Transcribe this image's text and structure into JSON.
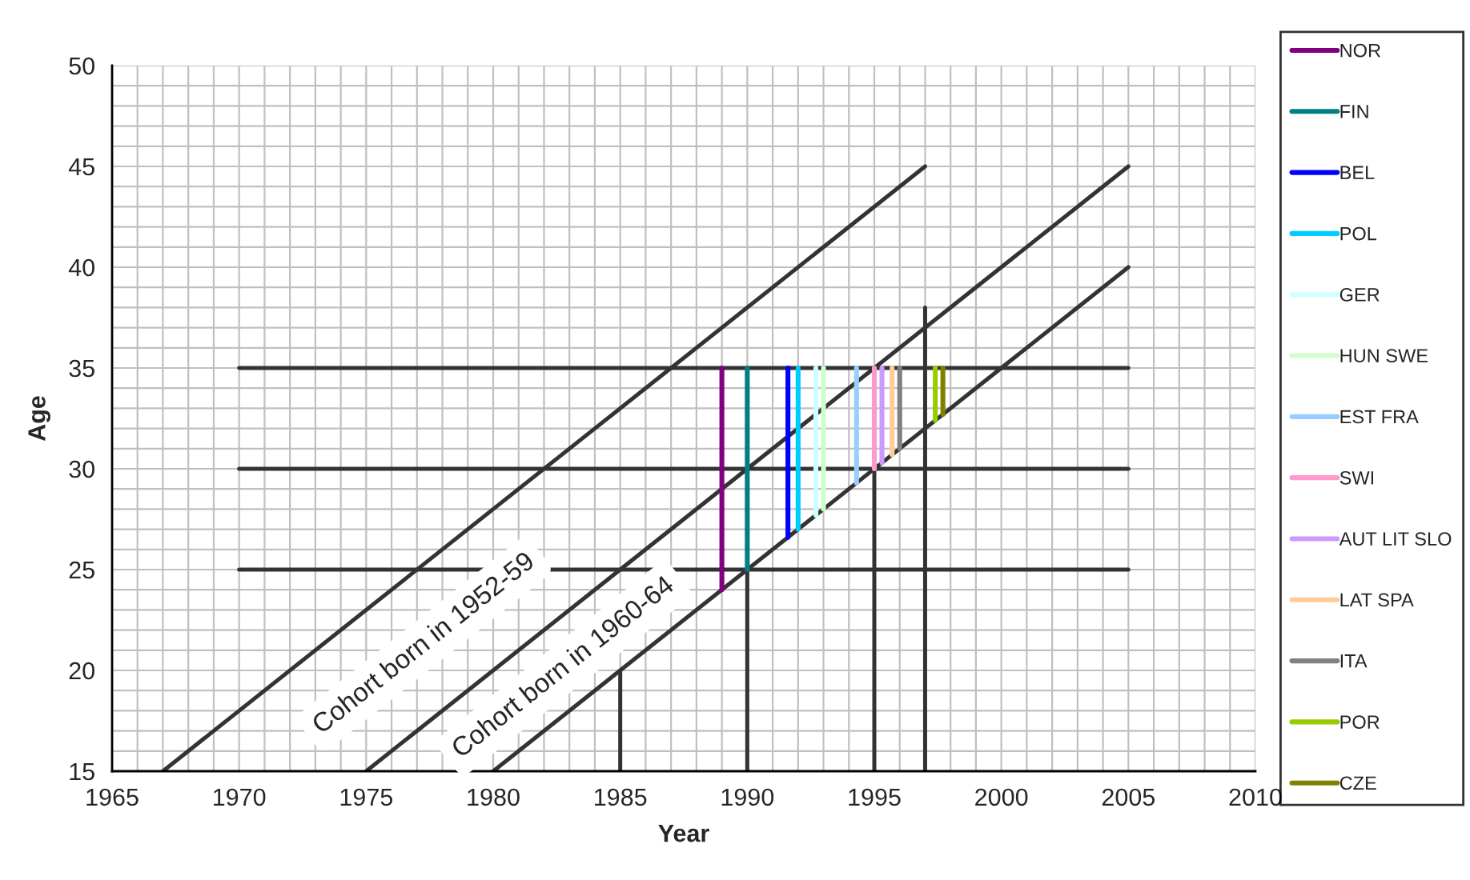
{
  "chart_data": {
    "type": "line",
    "xlabel": "Year",
    "ylabel": "Age",
    "xlim": [
      1965,
      2010
    ],
    "xticks": [
      1965,
      1970,
      1975,
      1980,
      1985,
      1990,
      1995,
      2000,
      2005,
      2010
    ],
    "ylim": [
      15,
      50
    ],
    "yticks": [
      15,
      20,
      25,
      30,
      35,
      40,
      45,
      50
    ],
    "grid": true,
    "legend": "right",
    "marker": "none",
    "line_style": "solid",
    "series": [
      {
        "color": "#333333",
        "x": [
          1967,
          1997
        ],
        "values": [
          15,
          45
        ]
      },
      {
        "color": "#333333",
        "x": [
          1975,
          2005
        ],
        "values": [
          15,
          45
        ]
      },
      {
        "color": "#333333",
        "x": [
          1980,
          2005
        ],
        "values": [
          15,
          40
        ]
      },
      {
        "color": "#333333",
        "x": [
          1970,
          2005
        ],
        "values": [
          35,
          35
        ]
      },
      {
        "color": "#333333",
        "x": [
          1970,
          2005
        ],
        "values": [
          30,
          30
        ]
      },
      {
        "color": "#333333",
        "x": [
          1970,
          2005
        ],
        "values": [
          25,
          25
        ]
      },
      {
        "color": "#333333",
        "x": [
          1985,
          1985
        ],
        "values": [
          15,
          20
        ]
      },
      {
        "color": "#333333",
        "x": [
          1990,
          1990
        ],
        "values": [
          15,
          25
        ]
      },
      {
        "color": "#333333",
        "x": [
          1995,
          1995
        ],
        "values": [
          15,
          30
        ]
      },
      {
        "color": "#333333",
        "x": [
          1997,
          1997
        ],
        "values": [
          15,
          38
        ]
      },
      {
        "name": "NOR",
        "color": "#800080",
        "x": [
          1989,
          1989
        ],
        "values": [
          24,
          35
        ]
      },
      {
        "name": "FIN",
        "color": "#008080",
        "x": [
          1990,
          1990
        ],
        "values": [
          25,
          35
        ]
      },
      {
        "name": "BEL",
        "color": "#0000ff",
        "x": [
          1991.6,
          1991.6
        ],
        "values": [
          26.6,
          35
        ]
      },
      {
        "name": "POL",
        "color": "#00ccff",
        "x": [
          1992,
          1992
        ],
        "values": [
          27,
          35
        ]
      },
      {
        "name": "GER",
        "color": "#ccffff",
        "x": [
          1992.7,
          1992.7
        ],
        "values": [
          27.7,
          35
        ]
      },
      {
        "name": "HUN SWE",
        "color": "#ccffcc",
        "x": [
          1993,
          1993
        ],
        "values": [
          28,
          35
        ]
      },
      {
        "name": "EST FRA",
        "color": "#99ccff",
        "x": [
          1994.3,
          1994.3
        ],
        "values": [
          29.3,
          35
        ]
      },
      {
        "name": "SWI",
        "color": "#ff99cc",
        "x": [
          1995,
          1995
        ],
        "values": [
          30,
          35
        ]
      },
      {
        "name": "AUT LIT SLO",
        "color": "#cc99ff",
        "x": [
          1995.3,
          1995.3
        ],
        "values": [
          30.3,
          35
        ]
      },
      {
        "name": "LAT SPA",
        "color": "#ffcc99",
        "x": [
          1995.7,
          1995.7
        ],
        "values": [
          30.7,
          35
        ]
      },
      {
        "name": "ITA",
        "color": "#808080",
        "x": [
          1996,
          1996
        ],
        "values": [
          31,
          35
        ]
      },
      {
        "name": "POR",
        "color": "#99cc00",
        "x": [
          1997.4,
          1997.4
        ],
        "values": [
          32.4,
          35
        ]
      },
      {
        "name": "CZE",
        "color": "#808000",
        "x": [
          1997.7,
          1997.7
        ],
        "values": [
          32.7,
          35
        ]
      }
    ],
    "annotations": [
      "Cohort born in 1952-59",
      "Cohort born in 1960-64"
    ]
  }
}
